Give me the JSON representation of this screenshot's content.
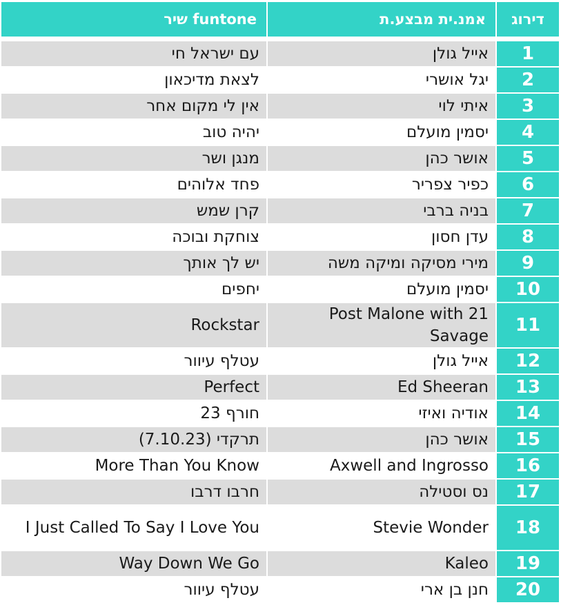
{
  "headers": {
    "rank": "דירוג",
    "artist": "אמנ.ית מבצע.ת",
    "song": "funtone שיר"
  },
  "rows": [
    {
      "rank": "1",
      "artist": "אייל גולן",
      "song": "עם ישראל חי"
    },
    {
      "rank": "2",
      "artist": "יגל אושרי",
      "song": "לצאת מדיכאון"
    },
    {
      "rank": "3",
      "artist": "איתי לוי",
      "song": "אין לי מקום אחר"
    },
    {
      "rank": "4",
      "artist": "יסמין מועלם",
      "song": "יהיה טוב"
    },
    {
      "rank": "5",
      "artist": "אושר כהן",
      "song": "מנגן ושר"
    },
    {
      "rank": "6",
      "artist": "כפיר צפריר",
      "song": "פחד אלוהים"
    },
    {
      "rank": "7",
      "artist": "בניה ברבי",
      "song": "קרן שמש"
    },
    {
      "rank": "8",
      "artist": "עדן חסון",
      "song": "צוחקת ובוכה"
    },
    {
      "rank": "9",
      "artist": "מירי מסיקה ומיקה משה",
      "song": "יש לך אותך"
    },
    {
      "rank": "10",
      "artist": "יסמין מועלם",
      "song": "יחפים"
    },
    {
      "rank": "11",
      "artist": "Post Malone with 21 Savage",
      "song": "Rockstar"
    },
    {
      "rank": "12",
      "artist": "אייל גולן",
      "song": "עטלף עיוור"
    },
    {
      "rank": "13",
      "artist": "Ed Sheeran",
      "song": "Perfect"
    },
    {
      "rank": "14",
      "artist": "אודיה ואיזי",
      "song": "חורף 23"
    },
    {
      "rank": "15",
      "artist": "אושר כהן",
      "song": "תרקדי (7.10.23)"
    },
    {
      "rank": "16",
      "artist": "Axwell and Ingrosso",
      "song": "More Than You Know"
    },
    {
      "rank": "17",
      "artist": "נס וסטילה",
      "song": "חרבו דרבו"
    },
    {
      "rank": "18",
      "artist": "Stevie Wonder",
      "song": "I Just Called To Say I Love You"
    },
    {
      "rank": "19",
      "artist": "Kaleo",
      "song": "Way Down We Go"
    },
    {
      "rank": "20",
      "artist": "חנן בן ארי",
      "song": "עטלף עיוור"
    }
  ],
  "colors": {
    "accent": "#33d3c7",
    "stripe": "#dcdcdc"
  }
}
